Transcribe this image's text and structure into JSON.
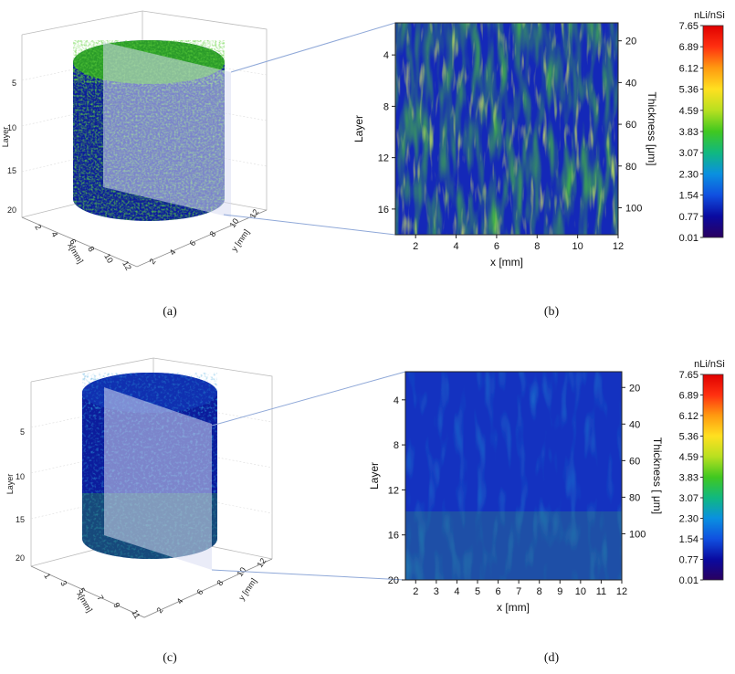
{
  "captions": [
    "(a)",
    "(b)",
    "(c)",
    "(d)"
  ],
  "colorbar": {
    "title": "nLi/nSi",
    "ticks": [
      "7.65",
      "6.89",
      "6.12",
      "5.36",
      "4.59",
      "3.83",
      "3.07",
      "2.30",
      "1.54",
      "0.77",
      "0.01"
    ],
    "stops": [
      "#2a005f",
      "#0a0aa0",
      "#1050e0",
      "#0a90e0",
      "#10b880",
      "#40c820",
      "#b8e020",
      "#ffe020",
      "#ff9a10",
      "#ff3010",
      "#e00000"
    ]
  },
  "chart_data": [
    {
      "panel": "a",
      "type": "surface3d",
      "axis_titles": {
        "x": "x[mm]",
        "y": "y [mm]",
        "z": "Layer"
      },
      "z_ticks": [
        "5",
        "10",
        "15",
        "20"
      ],
      "x_ticks": [
        "2",
        "4",
        "6",
        "8",
        "10",
        "12"
      ],
      "y_ticks": [
        "2",
        "4",
        "6",
        "8",
        "10",
        "12"
      ],
      "dominant_colors": [
        "#0a1aa0",
        "#2ea82a",
        "#b8e24a"
      ]
    },
    {
      "panel": "b",
      "type": "heatmap",
      "xlabel": "x [mm]",
      "ylabel": "Layer",
      "y2label": "Thickness [μm]",
      "x_ticks": [
        "2",
        "4",
        "6",
        "8",
        "10",
        "12"
      ],
      "y_ticks": [
        "4",
        "8",
        "12",
        "16"
      ],
      "y2_ticks": [
        "20",
        "40",
        "60",
        "80",
        "100"
      ],
      "xlim": [
        1,
        12
      ],
      "ylim": [
        1.5,
        18
      ],
      "value_range": [
        0.01,
        7.65
      ]
    },
    {
      "panel": "c",
      "type": "surface3d",
      "axis_titles": {
        "x": "x[mm]",
        "y": "y [mm]",
        "z": "Layer"
      },
      "z_ticks": [
        "5",
        "10",
        "15",
        "20"
      ],
      "x_ticks": [
        "1",
        "3",
        "5",
        "7",
        "9",
        "11"
      ],
      "y_ticks": [
        "2",
        "4",
        "6",
        "8",
        "10",
        "12"
      ],
      "dominant_colors": [
        "#0a1aa0",
        "#1a60c8",
        "#3ab04a"
      ]
    },
    {
      "panel": "d",
      "type": "heatmap",
      "xlabel": "x [mm]",
      "ylabel": "Layer",
      "y2label": "Thickness [ μm]",
      "x_ticks": [
        "2",
        "3",
        "4",
        "5",
        "6",
        "7",
        "8",
        "9",
        "10",
        "11",
        "12"
      ],
      "y_ticks": [
        "4",
        "8",
        "12",
        "16",
        "20"
      ],
      "y2_ticks": [
        "20",
        "40",
        "60",
        "80",
        "100"
      ],
      "xlim": [
        1.5,
        12
      ],
      "ylim": [
        1.5,
        20
      ],
      "value_range": [
        0.01,
        7.65
      ]
    }
  ]
}
